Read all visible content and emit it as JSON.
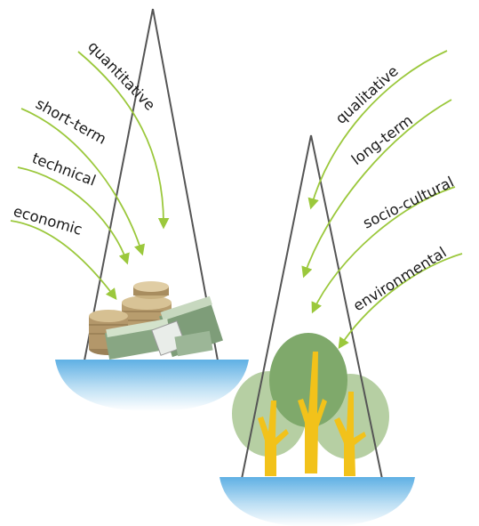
{
  "left_pan": {
    "labels": [
      "quantitative",
      "short-term",
      "technical",
      "economic"
    ],
    "object": "money-stack"
  },
  "right_pan": {
    "labels": [
      "qualitative",
      "long-term",
      "socio-cultural",
      "environmental"
    ],
    "object": "trees"
  },
  "colors": {
    "arrow": "#9bc83c",
    "string": "#555555",
    "tree_trunk": "#f2c21a",
    "tree_dark": "#7fa96b",
    "tree_light": "#b6cfa3",
    "money": "#8fae8a",
    "coin": "#b89d6e",
    "bowl_top": "#6fb7e6",
    "bowl_bottom": "#ffffff"
  }
}
